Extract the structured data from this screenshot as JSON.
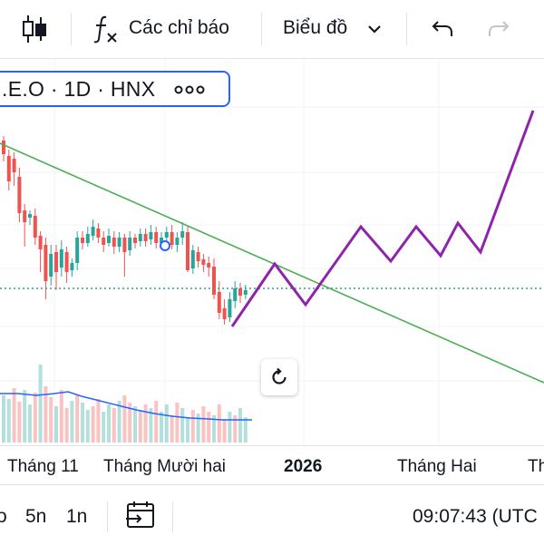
{
  "toolbar": {
    "indicators_label": "Các chỉ báo",
    "chart_type_label": "Biểu đồ",
    "icons": [
      "candlestick-icon",
      "function-icon",
      "chevron-down-icon",
      "undo-icon",
      "redo-icon"
    ]
  },
  "legend": {
    "symbol_text": ".E.O · 1D · HNX",
    "more_icon": "more-dots-icon"
  },
  "time_axis": {
    "labels": [
      "Tháng 11",
      "Tháng Mười hai",
      "2026",
      "Tháng Hai",
      "Th"
    ]
  },
  "bottom_bar": {
    "ranges": [
      "o",
      "5n",
      "1n"
    ],
    "clock": "09:07:43 (UTC"
  },
  "colors": {
    "up_candle": "#26a69a",
    "down_candle": "#ef5350",
    "trend_line": "#4caf50",
    "projection_line": "#8e24aa",
    "ma_line": "#2962ff",
    "price_line": "#26a69a",
    "accent": "#2962ff"
  },
  "chart_data": {
    "type": "candlestick",
    "title": ".E.O · 1D · HNX",
    "xlabel": "",
    "ylabel": "",
    "x_tick_labels": [
      "Tháng 11",
      "Tháng Mười hai",
      "2026",
      "Tháng Hai",
      "Th"
    ],
    "series": [
      {
        "name": "price",
        "candles_shown": 58
      },
      {
        "name": "volume",
        "bars_shown": 58
      },
      {
        "name": "volume_ma",
        "kind": "line"
      },
      {
        "name": "trend_line",
        "kind": "drawing"
      },
      {
        "name": "projection_zigzag",
        "kind": "drawing"
      }
    ]
  }
}
